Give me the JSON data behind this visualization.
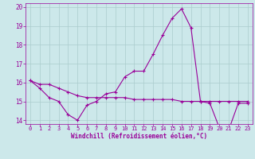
{
  "xlabel": "Windchill (Refroidissement éolien,°C)",
  "background_color": "#cce8ea",
  "line_color": "#990099",
  "grid_color": "#aacccc",
  "x_values": [
    0,
    1,
    2,
    3,
    4,
    5,
    6,
    7,
    8,
    9,
    10,
    11,
    12,
    13,
    14,
    15,
    16,
    17,
    18,
    19,
    20,
    21,
    22,
    23
  ],
  "series1": [
    16.1,
    15.7,
    15.2,
    15.0,
    14.3,
    14.0,
    14.8,
    15.0,
    15.4,
    15.5,
    16.3,
    16.6,
    16.6,
    17.5,
    18.5,
    19.4,
    19.9,
    18.9,
    15.0,
    14.9,
    13.6,
    13.5,
    14.9,
    14.9
  ],
  "series2": [
    16.1,
    15.9,
    15.9,
    15.7,
    15.5,
    15.3,
    15.2,
    15.2,
    15.2,
    15.2,
    15.2,
    15.1,
    15.1,
    15.1,
    15.1,
    15.1,
    15.0,
    15.0,
    15.0,
    15.0,
    15.0,
    15.0,
    15.0,
    15.0
  ],
  "ylim": [
    14,
    20
  ],
  "xlim": [
    0,
    23
  ],
  "yticks": [
    14,
    15,
    16,
    17,
    18,
    19,
    20
  ],
  "xticks": [
    0,
    1,
    2,
    3,
    4,
    5,
    6,
    7,
    8,
    9,
    10,
    11,
    12,
    13,
    14,
    15,
    16,
    17,
    18,
    19,
    20,
    21,
    22,
    23
  ],
  "xlabel_fontsize": 5.5,
  "tick_fontsize": 5,
  "ytick_fontsize": 5.5
}
